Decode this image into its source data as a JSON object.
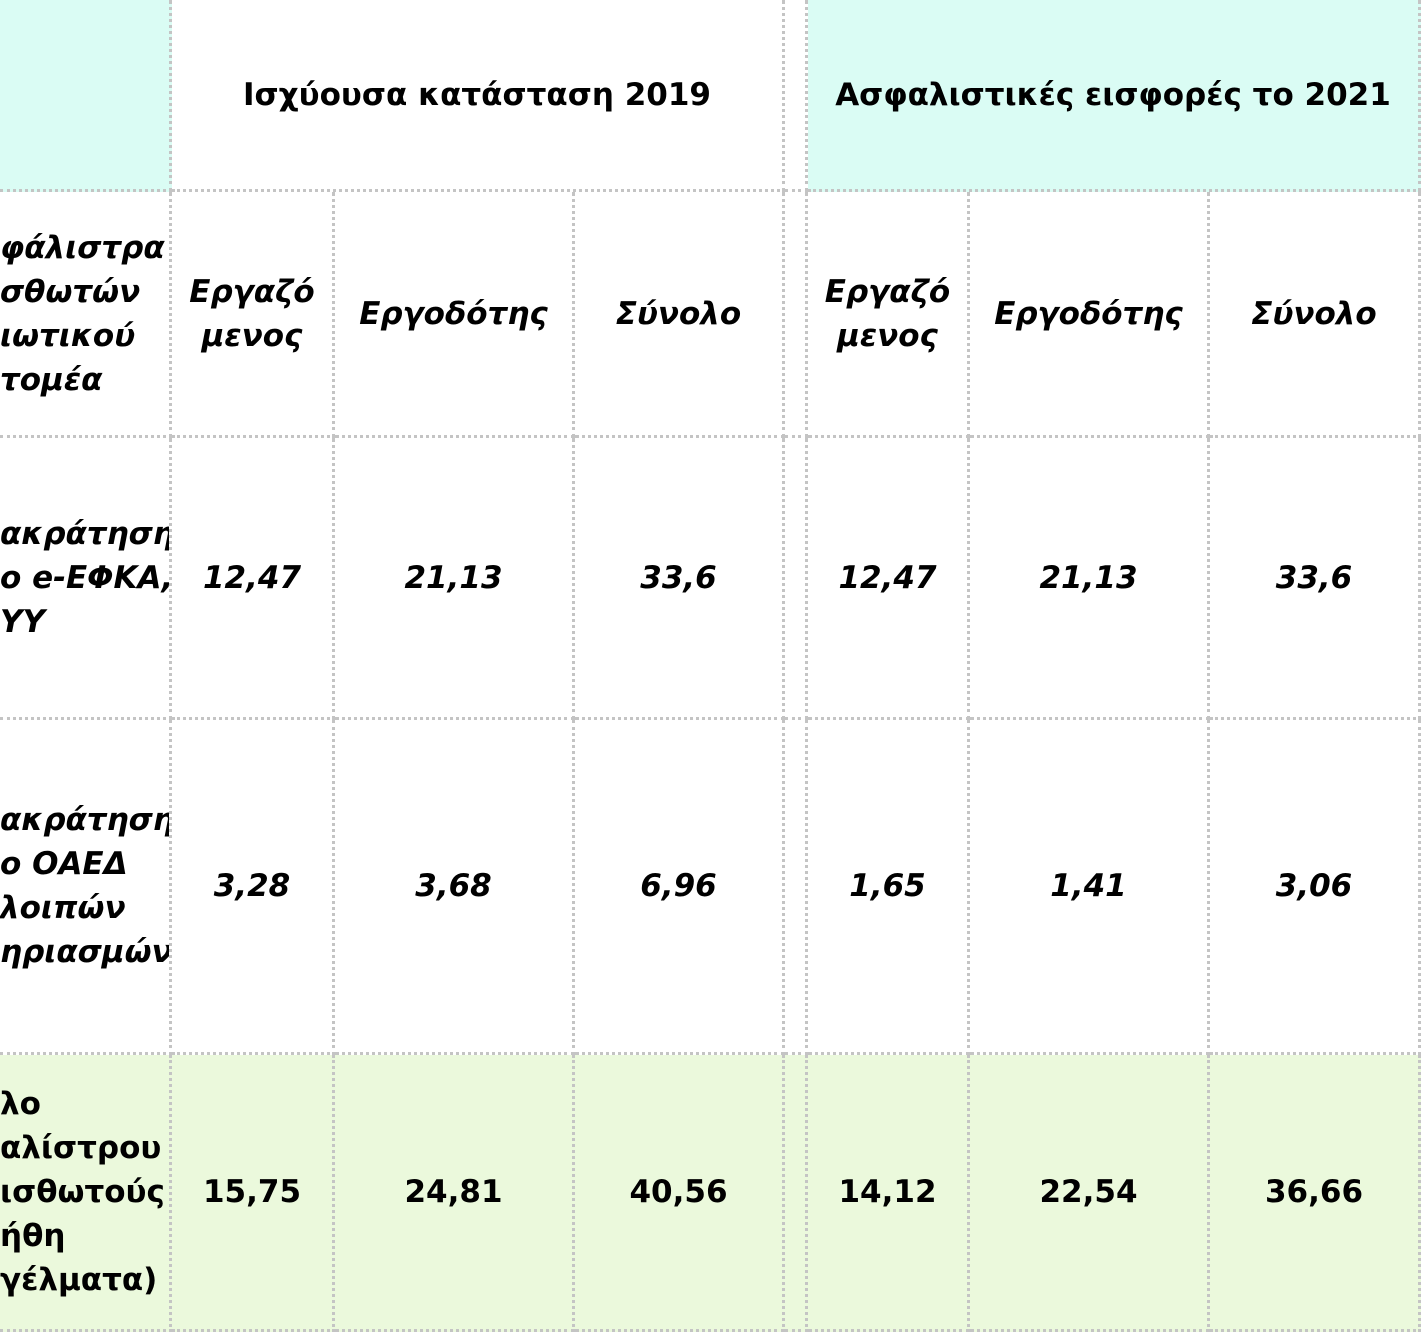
{
  "header": {
    "group_2019": "Ισχύουσα κατάσταση 2019",
    "group_2021": "Ασφαλιστικές εισφορές το 2021"
  },
  "subheader": {
    "label_lines": [
      "φάλιστρα",
      "σθωτών",
      "ιωτικού",
      "τομέα"
    ],
    "columns": [
      "Εργαζόμενος",
      "Εργοδότης",
      "Σύνολο",
      "Εργαζόμενος",
      "Εργοδότης",
      "Σύνολο"
    ]
  },
  "rows": [
    {
      "label_lines": [
        "ακράτηση",
        "ο e-ΕΦΚΑ,",
        "ΥΥ"
      ],
      "values": [
        "12,47",
        "21,13",
        "33,6",
        "12,47",
        "21,13",
        "33,6"
      ]
    },
    {
      "label_lines": [
        "ακράτηση",
        "ο ΟΑΕΔ",
        "λοιπών",
        "ηριασμών"
      ],
      "values": [
        "3,28",
        "3,68",
        "6,96",
        "1,65",
        "1,41",
        "3,06"
      ]
    },
    {
      "label_lines": [
        "λο",
        "αλίστρου",
        "ισθωτούς",
        "ήθη",
        "γέλματα)"
      ],
      "values": [
        "15,75",
        "24,81",
        "40,56",
        "14,12",
        "22,54",
        "36,66"
      ]
    }
  ]
}
